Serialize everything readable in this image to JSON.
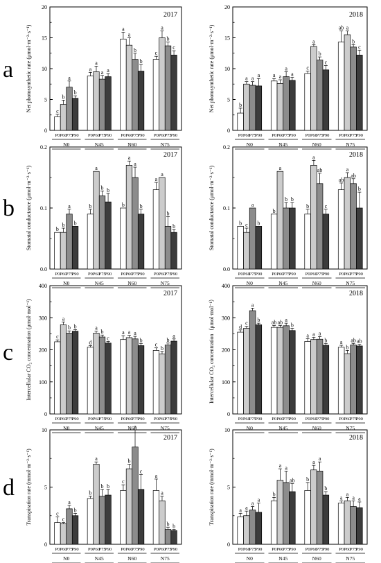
{
  "row_labels": [
    "a",
    "b",
    "c",
    "d"
  ],
  "x_ticks": [
    "P0",
    "P60",
    "P75",
    "P90"
  ],
  "groups": [
    "N0",
    "N45",
    "N60",
    "N75"
  ],
  "bar_colors": [
    "#ffffff",
    "#cccccc",
    "#8c8c8c",
    "#3c3c3c"
  ],
  "chart_data": [
    {
      "type": "bar",
      "year": "2017",
      "ylabel": "Net photosynthetic rate (μmol·m⁻²·s⁻¹)",
      "ylim": [
        0,
        20
      ],
      "yticks": [
        "0",
        "5",
        "10",
        "15",
        "20"
      ],
      "ytick_values": [
        0,
        5,
        10,
        15,
        20
      ],
      "values": [
        [
          2.2,
          4.2,
          7.0,
          5.2
        ],
        [
          8.8,
          9.5,
          8.3,
          8.7
        ],
        [
          14.8,
          13.8,
          11.5,
          9.6
        ],
        [
          11.5,
          15.0,
          13.7,
          12.2
        ]
      ],
      "errors": [
        [
          0.4,
          0.7,
          1.0,
          0.4
        ],
        [
          0.6,
          0.9,
          0.6,
          0.5
        ],
        [
          1.1,
          1.2,
          1.0,
          1.1
        ],
        [
          0.5,
          1.1,
          0.6,
          0.7
        ]
      ],
      "letters": [
        [
          "c",
          "b",
          "a",
          "b"
        ],
        [
          "a",
          "a",
          "a",
          "a"
        ],
        [
          "a",
          "a",
          "b",
          "b"
        ],
        [
          "c",
          "a",
          "b",
          "c"
        ]
      ]
    },
    {
      "type": "bar",
      "year": "2018",
      "ylabel": "Net photosynthetic rate (μmol·m⁻²·s⁻¹)",
      "ylim": [
        0,
        20
      ],
      "yticks": [
        "0",
        "5",
        "10",
        "15",
        "20"
      ],
      "ytick_values": [
        0,
        5,
        10,
        15,
        20
      ],
      "values": [
        [
          2.8,
          7.5,
          7.3,
          7.2
        ],
        [
          8.0,
          7.6,
          8.7,
          8.1
        ],
        [
          9.2,
          13.6,
          11.4,
          9.8
        ],
        [
          14.3,
          15.5,
          13.5,
          12.2
        ]
      ],
      "errors": [
        [
          0.8,
          0.4,
          0.6,
          1.2
        ],
        [
          0.4,
          0.6,
          0.8,
          0.5
        ],
        [
          0.4,
          0.3,
          0.5,
          0.7
        ],
        [
          1.8,
          0.6,
          0.4,
          0.8
        ]
      ],
      "letters": [
        [
          "b",
          "a",
          "a",
          "a"
        ],
        [
          "a",
          "a",
          "a",
          "a"
        ],
        [
          "c",
          "a",
          "b",
          "c"
        ],
        [
          "ab",
          "a",
          "b",
          "c"
        ]
      ]
    },
    {
      "type": "bar",
      "year": "2017",
      "ylabel": "Stomatal conductance (μmol·m⁻²·s⁻¹)",
      "ylim": [
        0,
        0.2
      ],
      "yticks": [
        "0.0",
        "0.1",
        "0.2"
      ],
      "ytick_values": [
        0,
        0.1,
        0.2
      ],
      "values": [
        [
          0.06,
          0.06,
          0.09,
          0.07
        ],
        [
          0.09,
          0.16,
          0.12,
          0.11
        ],
        [
          0.1,
          0.17,
          0.15,
          0.09
        ],
        [
          0.13,
          0.15,
          0.07,
          0.06
        ]
      ],
      "errors": [
        [
          0.0,
          0.007,
          0.008,
          0.0
        ],
        [
          0.008,
          0.0,
          0.008,
          0.014
        ],
        [
          0.0,
          0.007,
          0.017,
          0.008
        ],
        [
          0.012,
          0.0,
          0.016,
          0.005
        ]
      ],
      "letters": [
        [
          "b",
          "b",
          "a",
          "b"
        ],
        [
          "b",
          "a",
          "b",
          "b"
        ],
        [
          "b",
          "a",
          "a",
          "b"
        ],
        [
          "a",
          "a",
          "b",
          "b"
        ]
      ]
    },
    {
      "type": "bar",
      "year": "2018",
      "ylabel": "Stomatal conductance (μmol·m⁻²·s⁻¹)",
      "ylim": [
        0,
        0.2
      ],
      "yticks": [
        "0.0",
        "0.1",
        "0.2"
      ],
      "ytick_values": [
        0,
        0.1,
        0.2
      ],
      "values": [
        [
          0.07,
          0.06,
          0.1,
          0.07
        ],
        [
          0.09,
          0.16,
          0.1,
          0.1
        ],
        [
          0.09,
          0.17,
          0.14,
          0.09
        ],
        [
          0.13,
          0.15,
          0.14,
          0.1
        ]
      ],
      "errors": [
        [
          0.0,
          0.007,
          0.0,
          0.0
        ],
        [
          0.0,
          0.0,
          0.009,
          0.009
        ],
        [
          0.008,
          0.008,
          0.017,
          0.008
        ],
        [
          0.011,
          0.008,
          0.008,
          0.026
        ]
      ],
      "letters": [
        [
          "b",
          "c",
          "a",
          "b"
        ],
        [
          "b",
          "a",
          "b",
          "b"
        ],
        [
          "b",
          "a",
          "ab",
          "c"
        ],
        [
          "ab",
          "a",
          "ab",
          "b"
        ]
      ]
    },
    {
      "type": "bar",
      "year": "2017",
      "ylabel": "Intercellular CO₂ concentration (μmol·mol⁻¹)",
      "ylim": [
        0,
        400
      ],
      "yticks": [
        "0",
        "100",
        "200",
        "300",
        "400"
      ],
      "ytick_values": [
        0,
        100,
        200,
        300,
        400
      ],
      "values": [
        [
          225,
          278,
          252,
          258
        ],
        [
          208,
          252,
          240,
          221
        ],
        [
          232,
          238,
          234,
          213
        ],
        [
          198,
          187,
          215,
          227
        ]
      ],
      "errors": [
        [
          6,
          9,
          7,
          5
        ],
        [
          5,
          6,
          6,
          5
        ],
        [
          12,
          7,
          8,
          7
        ],
        [
          8,
          8,
          6,
          7
        ]
      ],
      "letters": [
        [
          "c",
          "a",
          "b",
          "b"
        ],
        [
          "d",
          "a",
          "b",
          "c"
        ],
        [
          "a",
          "a",
          "a",
          "b"
        ],
        [
          "c",
          "b",
          "b",
          "a"
        ]
      ]
    },
    {
      "type": "bar",
      "year": "2018",
      "ylabel": "Intercellular CO₂ concentration（μmol·mol⁻¹）",
      "ylim": [
        0,
        400
      ],
      "yticks": [
        "0",
        "100",
        "200",
        "300",
        "400"
      ],
      "ytick_values": [
        0,
        100,
        200,
        300,
        400
      ],
      "values": [
        [
          255,
          267,
          322,
          278
        ],
        [
          270,
          270,
          275,
          260
        ],
        [
          226,
          232,
          233,
          214
        ],
        [
          208,
          188,
          215,
          212
        ]
      ],
      "errors": [
        [
          7,
          6,
          8,
          5
        ],
        [
          6,
          6,
          8,
          7
        ],
        [
          9,
          7,
          8,
          6
        ],
        [
          6,
          10,
          5,
          5
        ]
      ],
      "letters": [
        [
          "d",
          "c",
          "a",
          "b"
        ],
        [
          "ab",
          "ab",
          "a",
          "b"
        ],
        [
          "a",
          "a",
          "a",
          "b"
        ],
        [
          "a",
          "b",
          "ab",
          "ab"
        ]
      ]
    },
    {
      "type": "bar",
      "year": "2017",
      "ylabel": "Transpiration rate (mmol·m⁻²·s⁻¹)",
      "ylim": [
        0,
        10
      ],
      "yticks": [
        "0",
        "5",
        "10"
      ],
      "ytick_values": [
        0,
        5,
        10
      ],
      "values": [
        [
          1.9,
          1.8,
          3.1,
          2.5
        ],
        [
          4.0,
          7.0,
          4.2,
          4.3
        ],
        [
          4.7,
          6.6,
          8.5,
          4.8
        ],
        [
          4.7,
          3.8,
          1.3,
          1.2
        ]
      ],
      "errors": [
        [
          0.5,
          0.1,
          0.3,
          0.2
        ],
        [
          0.2,
          0.2,
          0.6,
          0.5
        ],
        [
          0.5,
          0.4,
          1.5,
          1.3
        ],
        [
          1.0,
          0.4,
          0.2,
          0.1
        ]
      ],
      "letters": [
        [
          "c",
          "c",
          "a",
          "b"
        ],
        [
          "b",
          "a",
          "b",
          "b"
        ],
        [
          "c",
          "b",
          "a",
          "c"
        ],
        [
          "a",
          "a",
          "b",
          "b"
        ]
      ]
    },
    {
      "type": "bar",
      "year": "2018",
      "ylabel": "Transpiration rate (mmol·m⁻²·s⁻¹)",
      "ylim": [
        0,
        10
      ],
      "yticks": [
        "0",
        "5",
        "10"
      ],
      "ytick_values": [
        0,
        5,
        10
      ],
      "values": [
        [
          2.4,
          2.5,
          3.0,
          2.8
        ],
        [
          3.8,
          5.6,
          5.4,
          4.6
        ],
        [
          4.7,
          6.5,
          6.4,
          4.3
        ],
        [
          3.6,
          3.8,
          3.3,
          3.2
        ]
      ],
      "errors": [
        [
          0.3,
          0.4,
          0.3,
          0.8
        ],
        [
          0.3,
          1.0,
          1.0,
          0.7
        ],
        [
          0.7,
          0.4,
          0.8,
          0.3
        ],
        [
          0.2,
          0.3,
          0.5,
          0.5
        ]
      ],
      "letters": [
        [
          "a",
          "a",
          "a",
          "a"
        ],
        [
          "b",
          "a",
          "a",
          "ab"
        ],
        [
          "b",
          "a",
          "a",
          "b"
        ],
        [
          "a",
          "a",
          "a",
          "a"
        ]
      ]
    }
  ]
}
